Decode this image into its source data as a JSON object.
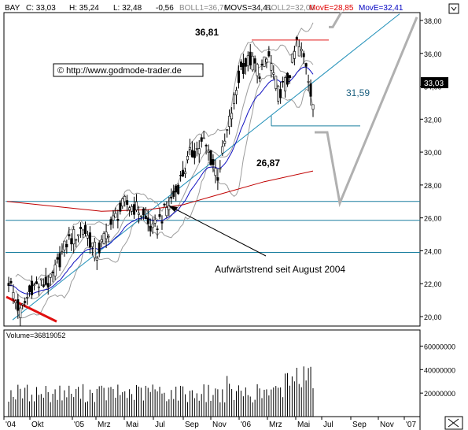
{
  "chart_data": [
    {
      "type": "candlestick",
      "header": {
        "symbol": "BAY",
        "close": "C: 33,03",
        "high": "H: 35,24",
        "low": "L: 32,48",
        "change": "-0,56",
        "boll1": "BOLL1=36,76",
        "movs": "MOVS=34,41",
        "boll2": "BOLL2=32,06",
        "move1": "MovE=28,85",
        "move2": "MovE=32,41"
      },
      "watermark": "© http://www.godmode-trader.de",
      "last_price_label": "33,03",
      "y_ticks": [
        {
          "value": 20,
          "label": "20,00"
        },
        {
          "value": 22,
          "label": "22,00"
        },
        {
          "value": 24,
          "label": "24,00"
        },
        {
          "value": 26,
          "label": "26,00"
        },
        {
          "value": 28,
          "label": "28,00"
        },
        {
          "value": 30,
          "label": "30,00"
        },
        {
          "value": 32,
          "label": "32,00"
        },
        {
          "value": 34,
          "label": "34,00"
        },
        {
          "value": 36,
          "label": "36,00"
        },
        {
          "value": 38,
          "label": "38,00"
        }
      ],
      "ylim": [
        19.5,
        38.5
      ],
      "annotations": [
        {
          "id": "high",
          "text": "36,81",
          "value": 36.81
        },
        {
          "id": "support",
          "text": "31,59",
          "value": 31.59
        },
        {
          "id": "ma",
          "text": "26,87",
          "value": 26.87
        },
        {
          "id": "trend",
          "text": "Aufwärtstrend seit August 2004"
        }
      ],
      "horizontal_levels": [
        27.0,
        25.85,
        23.9
      ],
      "colors": {
        "candle": "#000000",
        "bollinger": "#9c9c9c",
        "ema_fast": "#1010c0",
        "ema_slow": "#c00000",
        "trendline": "#1f8fb8",
        "levels": "#1a7f9f",
        "resistance": "#e01010",
        "projection": "#b0b0b0",
        "header_red": "#e00000",
        "header_blue": "#0000c0"
      }
    },
    {
      "type": "bar",
      "title": "Volume=36819052",
      "y_ticks": [
        {
          "value": 20000000,
          "label": "20000000"
        },
        {
          "value": 40000000,
          "label": "40000000"
        },
        {
          "value": 60000000,
          "label": "60000000"
        }
      ],
      "ylim": [
        0,
        65000000
      ],
      "color": "#000000"
    }
  ],
  "x_axis": {
    "labels": [
      "'04",
      "Okt",
      "'05",
      "Mrz",
      "Mai",
      "Jul",
      "Sep",
      "Nov",
      "'06",
      "Mrz",
      "Mai",
      "Jul",
      "Sep",
      "Nov",
      "'07"
    ]
  }
}
